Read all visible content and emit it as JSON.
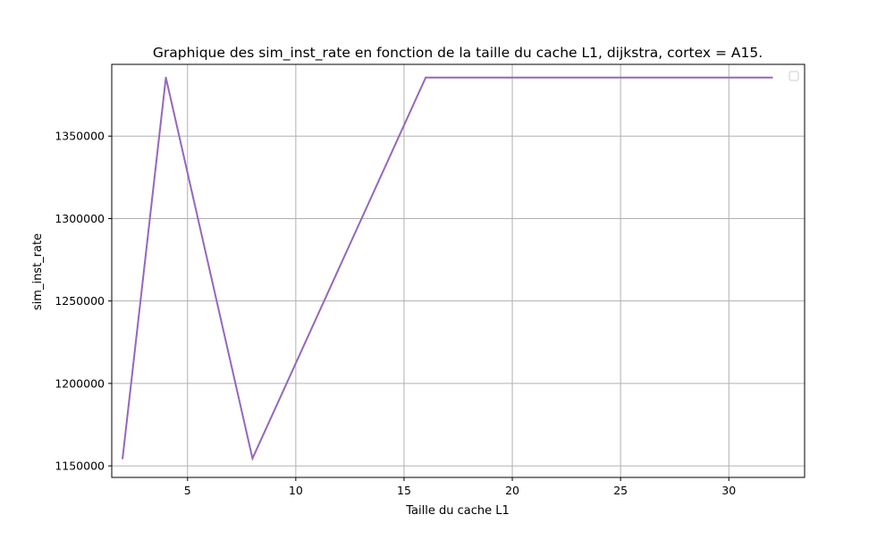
{
  "chart_data": {
    "type": "line",
    "title": "Graphique des sim_inst_rate en fonction de la taille du cache L1, dijkstra, cortex = A15.",
    "xlabel": "Taille du cache L1",
    "ylabel": "sim_inst_rate",
    "xlim": [
      1.5,
      33.5
    ],
    "ylim": [
      1143000,
      1393500
    ],
    "xticks": [
      5,
      10,
      15,
      20,
      25,
      30
    ],
    "yticks": [
      1150000,
      1200000,
      1250000,
      1300000,
      1350000
    ],
    "grid": true,
    "legend": {
      "placement": "upper-right",
      "entries": []
    },
    "line_color": "#9467bd",
    "series": [
      {
        "x": [
          2,
          4,
          8,
          16,
          32
        ],
        "y": [
          1154500,
          1385500,
          1154500,
          1385500,
          1385500
        ]
      }
    ]
  }
}
